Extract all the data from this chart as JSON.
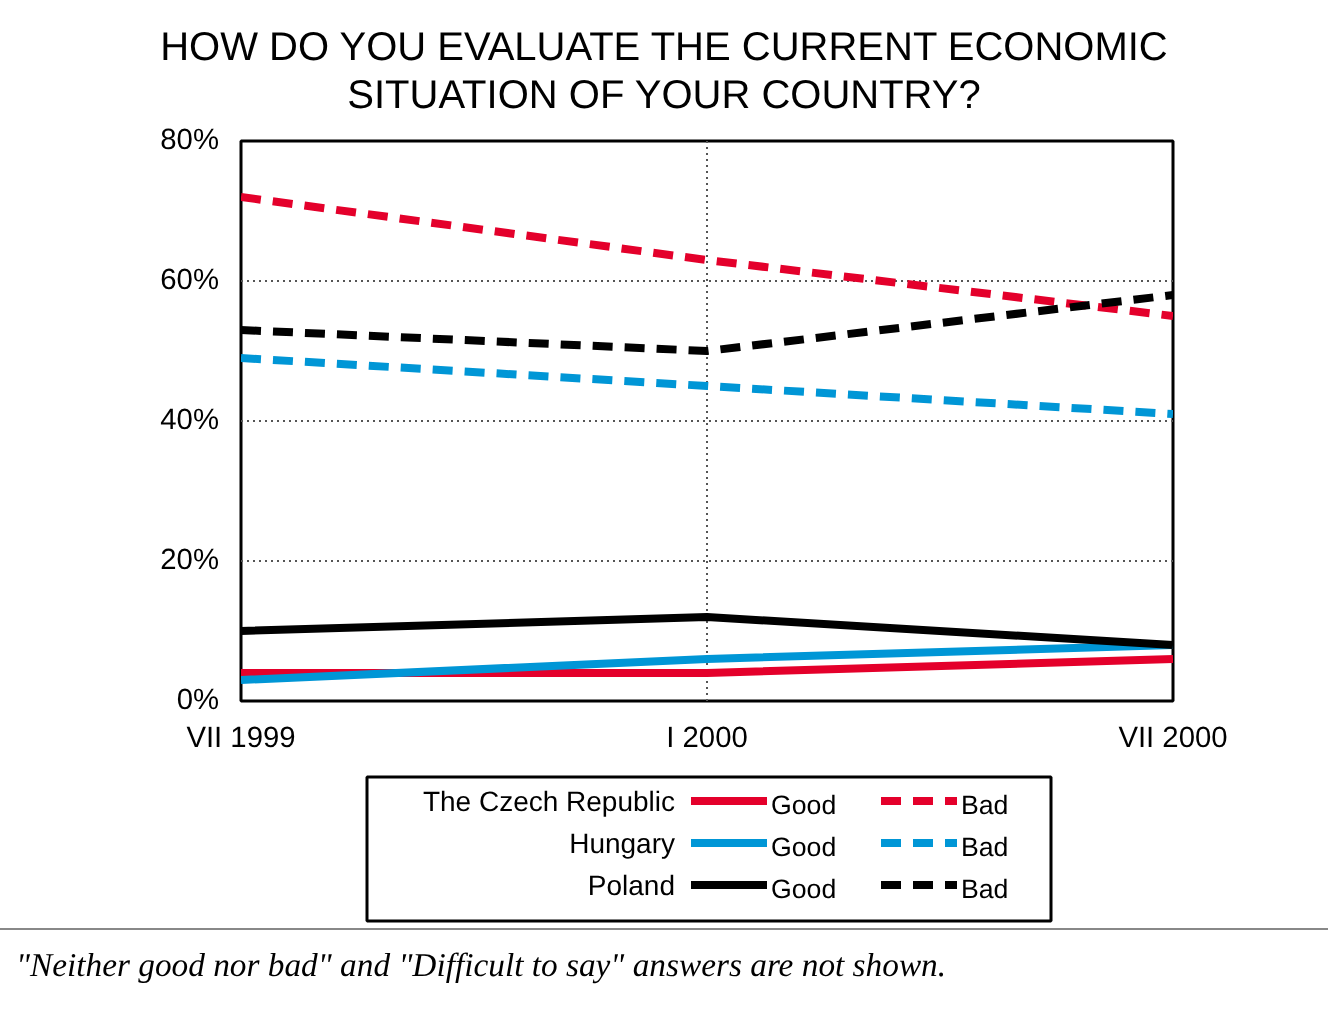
{
  "chart_data": {
    "type": "line",
    "title": "HOW DO YOU EVALUATE THE CURRENT ECONOMIC\nSITUATION OF YOUR COUNTRY?",
    "categories": [
      "VII 1999",
      "I 2000",
      "VII 2000"
    ],
    "series": [
      {
        "name": "Good",
        "color": "#e4002b",
        "line_style": "solid",
        "values": [
          4,
          4,
          6
        ]
      },
      {
        "name": "Bad",
        "color": "#e4002b",
        "line_style": "dashed",
        "values": [
          72,
          63,
          55
        ]
      },
      {
        "name": "Good",
        "color": "#0096d6",
        "line_style": "solid",
        "values": [
          3,
          6,
          8
        ]
      },
      {
        "name": "Bad",
        "color": "#0096d6",
        "line_style": "dashed",
        "values": [
          49,
          45,
          41
        ]
      },
      {
        "name": "Good",
        "color": "#000000",
        "line_style": "solid",
        "values": [
          10,
          12,
          8
        ]
      },
      {
        "name": "Bad",
        "color": "#000000",
        "line_style": "dashed",
        "values": [
          53,
          50,
          58
        ]
      }
    ],
    "ylim": [
      0,
      80
    ],
    "yticks": [
      {
        "value": 0,
        "label": "0%"
      },
      {
        "value": 20,
        "label": "20%"
      },
      {
        "value": 40,
        "label": "40%"
      },
      {
        "value": 60,
        "label": "60%"
      },
      {
        "value": 80,
        "label": "80%"
      }
    ],
    "grid": true,
    "legend": "bottom",
    "marker": "none",
    "annotations": [
      "The Czech Republic",
      "Hungary",
      "Poland",
      "\"Neither good nor bad\" and \"Difficult to say\" answers are not shown."
    ]
  }
}
